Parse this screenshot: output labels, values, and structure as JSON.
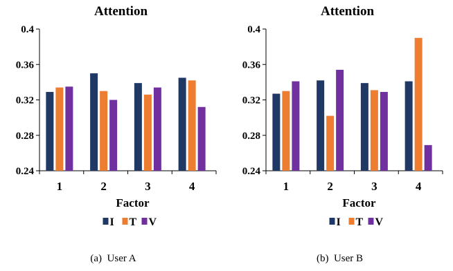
{
  "colors": {
    "I": "#203864",
    "T": "#ED7D31",
    "V": "#7030A0",
    "axis": "#000000"
  },
  "chart_data": [
    {
      "type": "bar",
      "title": "Attention",
      "xlabel": "Factor",
      "ylabel": "",
      "categories": [
        "1",
        "2",
        "3",
        "4"
      ],
      "ylim": [
        0.24,
        0.4
      ],
      "yticks": [
        "0.4",
        "0.36",
        "0.32",
        "0.28",
        "0.24"
      ],
      "ytick_values": [
        0.4,
        0.36,
        0.32,
        0.28,
        0.24
      ],
      "legend_position": "bottom",
      "series": [
        {
          "name": "I",
          "values": [
            0.329,
            0.35,
            0.339,
            0.345
          ]
        },
        {
          "name": "T",
          "values": [
            0.334,
            0.33,
            0.326,
            0.342
          ]
        },
        {
          "name": "V",
          "values": [
            0.335,
            0.32,
            0.334,
            0.312
          ]
        }
      ],
      "caption_label": "(a)",
      "caption_text": "User A"
    },
    {
      "type": "bar",
      "title": "Attention",
      "xlabel": "Factor",
      "ylabel": "",
      "categories": [
        "1",
        "2",
        "3",
        "4"
      ],
      "ylim": [
        0.24,
        0.4
      ],
      "yticks": [
        "0.4",
        "0.36",
        "0.32",
        "0.28",
        "0.24"
      ],
      "ytick_values": [
        0.4,
        0.36,
        0.32,
        0.28,
        0.24
      ],
      "legend_position": "bottom",
      "series": [
        {
          "name": "I",
          "values": [
            0.327,
            0.342,
            0.339,
            0.341
          ]
        },
        {
          "name": "T",
          "values": [
            0.33,
            0.302,
            0.331,
            0.39
          ]
        },
        {
          "name": "V",
          "values": [
            0.341,
            0.354,
            0.329,
            0.269
          ]
        }
      ],
      "caption_label": "(b)",
      "caption_text": "User B"
    }
  ]
}
